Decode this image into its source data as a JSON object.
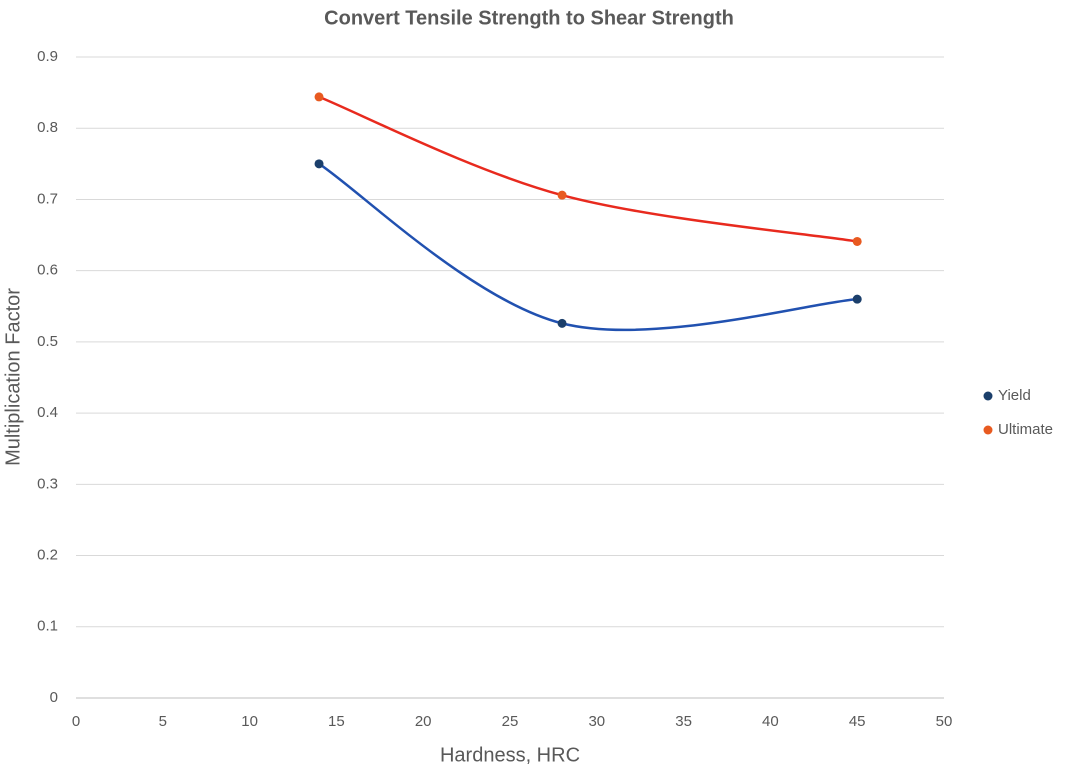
{
  "chart_data": {
    "type": "scatter",
    "title": "Convert Tensile Strength to Shear Strength",
    "x_label": "Hardness, HRC",
    "y_label": "Multiplication Factor",
    "smooth_lines": true,
    "grid": true,
    "legend": "right",
    "series": [
      {
        "name": "Yield",
        "color": "#1b3f6b",
        "line_color": "#2151b0",
        "x": [
          14,
          28,
          45
        ],
        "values": [
          0.75,
          0.526,
          0.56
        ]
      },
      {
        "name": "Ultimate",
        "color": "#e85a20",
        "line_color": "#e82a1e",
        "x": [
          14,
          28,
          45
        ],
        "values": [
          0.844,
          0.706,
          0.641
        ]
      }
    ],
    "xlim": [
      0,
      50
    ],
    "xticks": [
      0,
      5,
      10,
      15,
      20,
      25,
      30,
      35,
      40,
      45,
      50
    ],
    "ylim": [
      0,
      0.9
    ],
    "yticks": [
      0,
      0.1,
      0.2,
      0.3,
      0.4,
      0.5,
      0.6,
      0.7,
      0.8,
      0.9
    ]
  }
}
